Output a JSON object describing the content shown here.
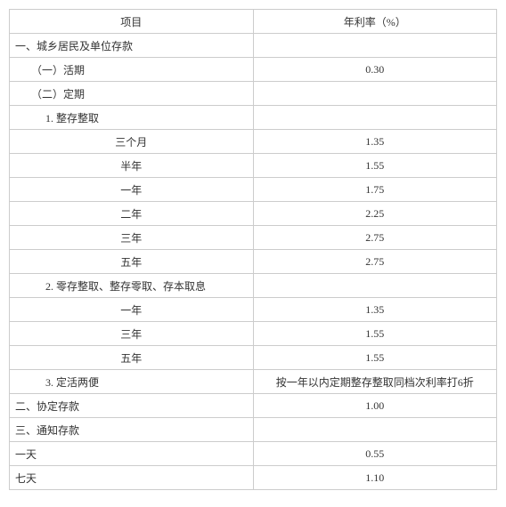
{
  "table": {
    "header": {
      "left": "项目",
      "right": "年利率（%）"
    },
    "rows": [
      {
        "label": "一、城乡居民及单位存款",
        "rate": "",
        "align": "left",
        "indent": 0
      },
      {
        "label": "（一）活期",
        "rate": "0.30",
        "align": "left",
        "indent": 1
      },
      {
        "label": "（二）定期",
        "rate": "",
        "align": "left",
        "indent": 1
      },
      {
        "label": "1. 整存整取",
        "rate": "",
        "align": "left",
        "indent": 2
      },
      {
        "label": "三个月",
        "rate": "1.35",
        "align": "center",
        "indent": 0
      },
      {
        "label": "半年",
        "rate": "1.55",
        "align": "center",
        "indent": 0
      },
      {
        "label": "一年",
        "rate": "1.75",
        "align": "center",
        "indent": 0
      },
      {
        "label": "二年",
        "rate": "2.25",
        "align": "center",
        "indent": 0
      },
      {
        "label": "三年",
        "rate": "2.75",
        "align": "center",
        "indent": 0
      },
      {
        "label": "五年",
        "rate": "2.75",
        "align": "center",
        "indent": 0
      },
      {
        "label": "2. 零存整取、整存零取、存本取息",
        "rate": "",
        "align": "left",
        "indent": 2
      },
      {
        "label": "一年",
        "rate": "1.35",
        "align": "center",
        "indent": 0
      },
      {
        "label": "三年",
        "rate": "1.55",
        "align": "center",
        "indent": 0
      },
      {
        "label": "五年",
        "rate": "1.55",
        "align": "center",
        "indent": 0
      },
      {
        "label": "3. 定活两便",
        "rate": "按一年以内定期整存整取同档次利率打6折",
        "align": "left",
        "indent": 2
      },
      {
        "label": "二、协定存款",
        "rate": "1.00",
        "align": "left",
        "indent": 0
      },
      {
        "label": "三、通知存款",
        "rate": "",
        "align": "left",
        "indent": 0
      },
      {
        "label": "一天",
        "rate": "0.55",
        "align": "left",
        "indent": 0
      },
      {
        "label": "七天",
        "rate": "1.10",
        "align": "left",
        "indent": 0
      }
    ]
  }
}
